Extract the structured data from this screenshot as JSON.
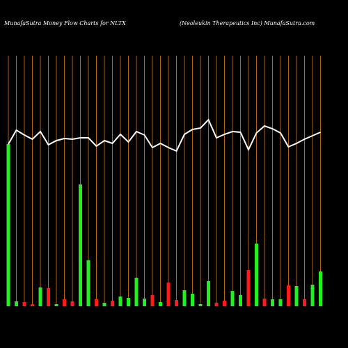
{
  "chart_data": {
    "type": "bar",
    "title": "MunafaSutra  Money Flow  Charts for NLTX",
    "subtitle": "(Neoleukin  Therapeutics Inc) MunafaSutra.com",
    "categories": [
      null,
      null,
      null,
      null,
      null,
      null,
      null,
      null,
      null,
      null,
      null,
      null,
      null,
      null,
      null,
      null,
      null,
      null,
      null,
      null,
      null,
      null,
      null,
      null,
      null,
      null,
      null,
      null,
      null,
      null,
      null,
      null,
      null,
      null,
      null,
      null,
      null,
      null,
      null,
      null
    ],
    "ylim": [
      0,
      360
    ],
    "grid": true,
    "grid_color": "#b8600c",
    "line_color": "#ffffff",
    "series": [
      {
        "values": [
          233,
          7,
          6,
          3,
          27,
          26,
          3,
          10,
          7,
          175,
          66,
          10,
          5,
          8,
          14,
          12,
          41,
          11,
          16,
          6,
          34,
          9,
          23,
          18,
          3,
          36,
          5,
          8,
          22,
          16,
          52,
          90,
          11,
          10,
          10,
          30,
          29,
          10,
          31,
          50
        ],
        "colors": [
          "#22ee22",
          "#22ee22",
          "#ff1a1a",
          "#ff1a1a",
          "#22ee22",
          "#ff1a1a",
          "#22ee22",
          "#ff1a1a",
          "#ff1a1a",
          "#22ee22",
          "#22ee22",
          "#ff1a1a",
          "#22ee22",
          "#ff1a1a",
          "#22ee22",
          "#22ee22",
          "#22ee22",
          "#22ee22",
          "#ff1a1a",
          "#22ee22",
          "#ff1a1a",
          "#ff1a1a",
          "#22ee22",
          "#22ee22",
          "#22ee22",
          "#22ee22",
          "#ff1a1a",
          "#ff1a1a",
          "#22ee22",
          "#22ee22",
          "#ff1a1a",
          "#22ee22",
          "#ff1a1a",
          "#22ee22",
          "#22ee22",
          "#ff1a1a",
          "#22ee22",
          "#ff1a1a",
          "#22ee22",
          "#22ee22"
        ]
      },
      {
        "type": "line",
        "values": [
          233,
          253,
          246,
          240,
          251,
          232,
          238,
          241,
          240,
          242,
          242,
          230,
          238,
          234,
          247,
          236,
          251,
          246,
          228,
          234,
          228,
          223,
          247,
          254,
          256,
          268,
          242,
          247,
          251,
          250,
          225,
          249,
          259,
          255,
          249,
          229,
          234,
          240,
          245,
          250
        ]
      }
    ]
  }
}
